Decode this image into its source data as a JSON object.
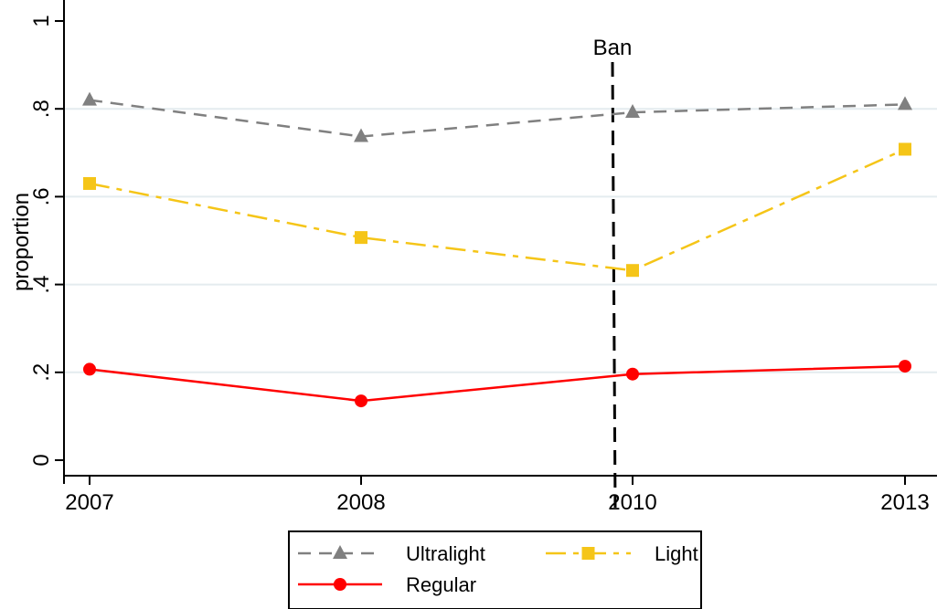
{
  "chart_data": {
    "type": "line",
    "title": "",
    "xlabel": "",
    "ylabel": "proportion",
    "categories": [
      "2007",
      "2008",
      "2010",
      "2013"
    ],
    "ylim": [
      0,
      1
    ],
    "yticks": [
      0,
      0.2,
      0.4,
      0.6,
      0.8,
      1
    ],
    "ytick_labels": [
      "0",
      ".2",
      ".4",
      ".6",
      ".8",
      "1"
    ],
    "grid": true,
    "legend_placement": "bottom",
    "annotation": {
      "label": "Ban",
      "position": "between 2008 and 2010"
    },
    "series": [
      {
        "name": "Ultralight",
        "values": [
          0.82,
          0.737,
          0.792,
          0.81
        ],
        "color": "#808080",
        "marker": "triangle",
        "dash": "dashed"
      },
      {
        "name": "Light",
        "values": [
          0.63,
          0.507,
          0.432,
          0.708
        ],
        "color": "#f5c518",
        "marker": "square",
        "dash": "longdash-dot"
      },
      {
        "name": "Regular",
        "values": [
          0.207,
          0.135,
          0.196,
          0.214
        ],
        "color": "#ff0000",
        "marker": "circle",
        "dash": "solid"
      }
    ]
  }
}
